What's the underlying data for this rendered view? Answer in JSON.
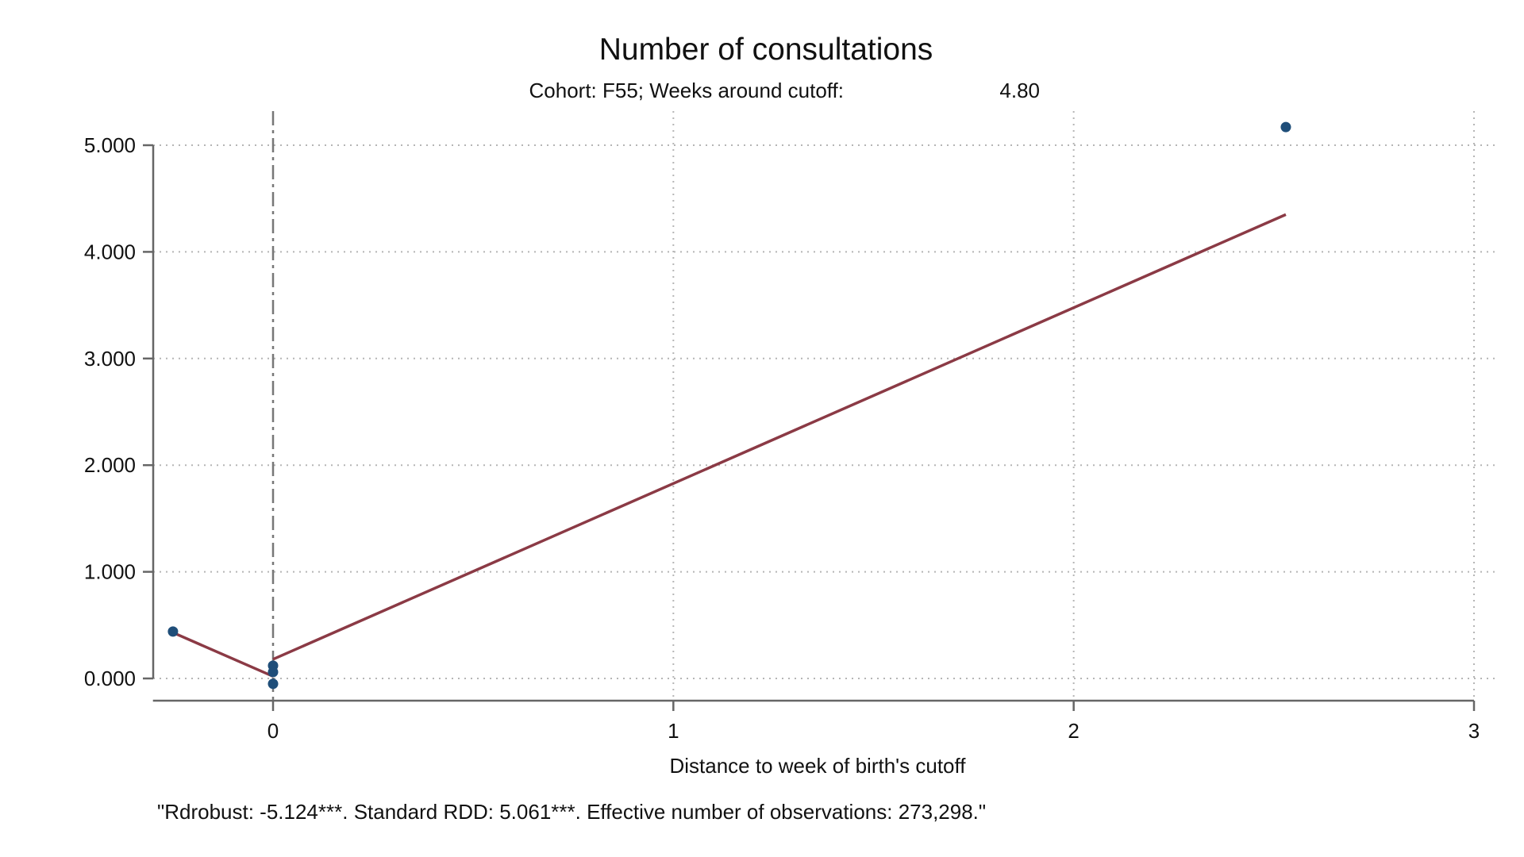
{
  "chart_data": {
    "type": "scatter",
    "title": "Number of consultations",
    "subtitle_label": "Cohort: F55; Weeks around cutoff:",
    "subtitle_value": "4.80",
    "xlabel": "Distance to week of birth's cutoff",
    "ylabel": "",
    "note": "\"Rdrobust: -5.124***. Standard RDD: 5.061***. Effective number of observations: 273,298.\"",
    "xlim": [
      -0.3,
      3.0
    ],
    "ylim": [
      -0.2,
      5.3
    ],
    "x_ticks": [
      0,
      1,
      2,
      3
    ],
    "x_tick_labels": [
      "0",
      "1",
      "2",
      "3"
    ],
    "y_ticks": [
      0,
      1,
      2,
      3,
      4,
      5
    ],
    "y_tick_labels": [
      "0.000",
      "1.000",
      "2.000",
      "3.000",
      "4.000",
      "5.000"
    ],
    "grid": true,
    "cutoff_x": 0,
    "points": [
      {
        "x": -0.25,
        "y": 0.44
      },
      {
        "x": 0.0,
        "y": 0.12
      },
      {
        "x": 0.0,
        "y": 0.06
      },
      {
        "x": 0.0,
        "y": -0.05
      },
      {
        "x": 2.53,
        "y": 5.17
      }
    ],
    "fit_left": [
      {
        "x": -0.25,
        "y": 0.43
      },
      {
        "x": 0.0,
        "y": 0.02
      }
    ],
    "fit_right": [
      {
        "x": 0.0,
        "y": 0.18
      },
      {
        "x": 2.53,
        "y": 4.35
      }
    ],
    "colors": {
      "points": "#1f4e79",
      "fit": "#8b3a45",
      "axis": "#666666",
      "grid": "#b5b5b5",
      "cutoff": "#777777"
    }
  }
}
